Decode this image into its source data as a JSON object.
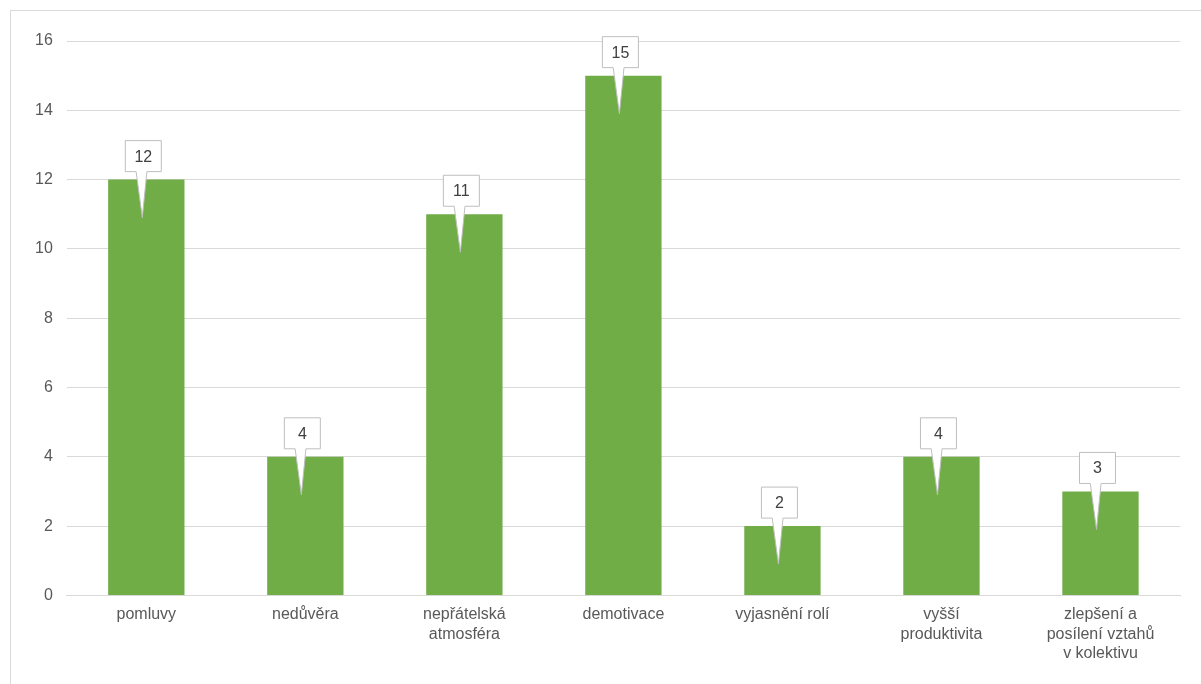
{
  "chart_data": {
    "type": "bar",
    "categories": [
      "pomluvy",
      "nedůvěra",
      "nepřátelská atmosféra",
      "demotivace",
      "vyjasnění rolí",
      "vyšší produktivita",
      "zlepšení a posílení vztahů v kolektivu"
    ],
    "values": [
      12,
      4,
      11,
      15,
      2,
      4,
      3
    ],
    "color": "#70ad47",
    "ylim": [
      0,
      16
    ],
    "yticks": [
      0,
      2,
      4,
      6,
      8,
      10,
      12,
      14,
      16
    ],
    "grid": "y",
    "legend": false,
    "data_labels": true
  }
}
